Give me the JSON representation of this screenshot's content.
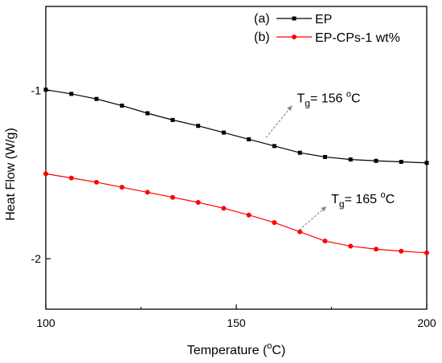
{
  "chart_data": {
    "type": "line",
    "title": "",
    "xlabel": "Temperature (",
    "xlabel_sup": "o",
    "xlabel_tail": "C)",
    "ylabel": "Heat Flow (W/g)",
    "xlim": [
      100,
      200
    ],
    "ylim": [
      -2.3,
      -0.5
    ],
    "x_ticks": [
      100,
      150,
      200
    ],
    "x_tick_labels": [
      "100",
      "150",
      "200"
    ],
    "y_ticks": [
      -1,
      -2
    ],
    "y_tick_labels": [
      "-1",
      "-2"
    ],
    "grid": false,
    "legend_position": "top-right",
    "series": [
      {
        "name": "EP",
        "prefix": "(a)",
        "color": "#000000",
        "marker": "square",
        "x": [
          100,
          106.7,
          113.3,
          120,
          126.7,
          133.3,
          140,
          146.7,
          153.3,
          160,
          166.7,
          173.3,
          180,
          186.7,
          193.3,
          200
        ],
        "y": [
          -0.995,
          -1.02,
          -1.05,
          -1.09,
          -1.135,
          -1.175,
          -1.21,
          -1.25,
          -1.29,
          -1.33,
          -1.37,
          -1.395,
          -1.41,
          -1.418,
          -1.424,
          -1.43
        ]
      },
      {
        "name": "EP-CPs-1 wt%",
        "prefix": "(b)",
        "color": "#ff0000",
        "marker": "circle",
        "x": [
          100,
          106.7,
          113.3,
          120,
          126.7,
          133.3,
          140,
          146.7,
          153.3,
          160,
          166.7,
          173.3,
          180,
          186.7,
          193.3,
          200
        ],
        "y": [
          -1.495,
          -1.52,
          -1.545,
          -1.575,
          -1.605,
          -1.635,
          -1.665,
          -1.7,
          -1.74,
          -1.785,
          -1.84,
          -1.895,
          -1.925,
          -1.943,
          -1.955,
          -1.965
        ]
      }
    ],
    "annotations": [
      {
        "label": "T",
        "sub": "g",
        "value": "= 156 ",
        "deg": "o",
        "unit": "C",
        "point_x": 157.8,
        "point_y": -1.28,
        "text_x": 165.5,
        "text_y": -1.07
      },
      {
        "label": "T",
        "sub": "g",
        "value": "= 165 ",
        "deg": "o",
        "unit": "C",
        "point_x": 166.5,
        "point_y": -1.83,
        "text_x": 174.5,
        "text_y": -1.67
      }
    ]
  }
}
